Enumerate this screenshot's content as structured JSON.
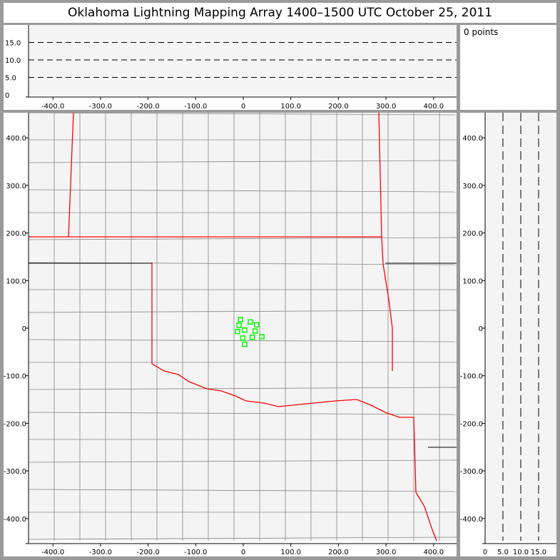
{
  "title": "Oklahoma Lightning Mapping Array   1400–1500 UTC  October 25, 2011",
  "points_label": "0 points",
  "colors": {
    "state_border": "#ff0000",
    "county_border": "#888888",
    "source": "#00ff00",
    "plot_bg": "#f4f4f4"
  },
  "chart_data": [
    {
      "type": "line",
      "panel": "altitude-vs-east",
      "xlim": [
        -450,
        450
      ],
      "ylim": [
        0,
        19
      ],
      "x_ticks": [
        "-400.0",
        "-300.0",
        "-200.0",
        "-100.0",
        "0",
        "100.0",
        "200.0",
        "300.0",
        "400.0"
      ],
      "y_ticks": [
        "0",
        "5.0",
        "10.0",
        "15.0"
      ],
      "grid": "dashed horizontal at 5, 10, 15",
      "series": []
    },
    {
      "type": "scatter",
      "panel": "plan-view map",
      "xlim": [
        -450,
        450
      ],
      "ylim": [
        -450,
        450
      ],
      "x_ticks": [
        "-400.0",
        "-300.0",
        "-200.0",
        "-100.0",
        "0",
        "100.0",
        "200.0",
        "300.0",
        "400.0"
      ],
      "y_ticks": [
        "-400.0",
        "-300.0",
        "-200.0",
        "-100.0",
        "0",
        "100.0",
        "200.0",
        "300.0",
        "400.0"
      ],
      "marker": "hollow square",
      "points": [
        [
          -6,
          18
        ],
        [
          15,
          13
        ],
        [
          28,
          7
        ],
        [
          -9,
          6
        ],
        [
          3,
          -4
        ],
        [
          25,
          -6
        ],
        [
          -12,
          -7
        ],
        [
          -1,
          -21
        ],
        [
          19,
          -19
        ],
        [
          39,
          -18
        ],
        [
          3,
          -34
        ]
      ]
    },
    {
      "type": "line",
      "panel": "north-vs-altitude",
      "xlim": [
        0,
        19
      ],
      "ylim": [
        -450,
        450
      ],
      "x_ticks": [
        "0",
        "5.0",
        "10.0",
        "15.0"
      ],
      "y_ticks": [
        "-400.0",
        "-300.0",
        "-200.0",
        "-100.0",
        "0",
        "100.0",
        "200.0",
        "300.0",
        "400.0"
      ],
      "grid": "dashed vertical at 5, 10, 15",
      "series": []
    }
  ]
}
